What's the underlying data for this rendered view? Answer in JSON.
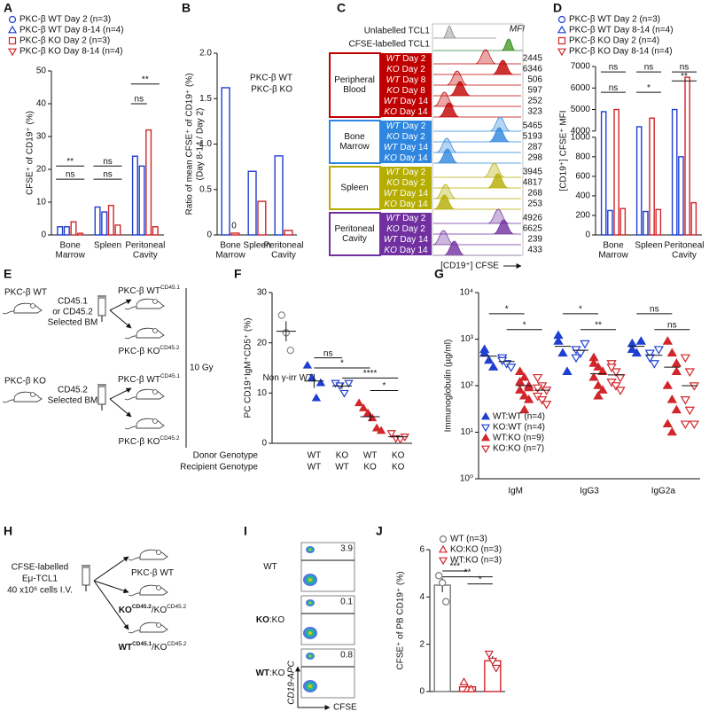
{
  "chart_data": [
    {
      "letter": "A",
      "type": "bar",
      "ylabel": [
        "CFSE⁺ of CD19⁺ (%)"
      ],
      "categories": [
        [
          "Bone",
          "Marrow"
        ],
        [
          "Spleen"
        ],
        [
          "Peritoneal",
          "Cavity"
        ]
      ],
      "ylim": [
        0,
        50
      ],
      "yticks": [
        0,
        10,
        20,
        30,
        40,
        50
      ],
      "series": [
        {
          "name": "PKC-β WT Day 2 (n=3)",
          "color": "#1f3fd1",
          "marker": "circle",
          "filled": false,
          "values": [
            2.5,
            8.5,
            24
          ]
        },
        {
          "name": "PKC-β WT Day 8-14 (n=4)",
          "color": "#1f3fd1",
          "marker": "triangle-up",
          "filled": false,
          "values": [
            2.5,
            7,
            21
          ]
        },
        {
          "name": "PKC-β KO Day 2 (n=3)",
          "color": "#d1262b",
          "marker": "square",
          "filled": false,
          "values": [
            4,
            9,
            32
          ]
        },
        {
          "name": "PKC-β KO Day 8-14 (n=4)",
          "color": "#d1262b",
          "marker": "triangle-down",
          "filled": false,
          "values": [
            0.5,
            3,
            2.5
          ]
        }
      ],
      "annotations": [
        "**",
        "ns",
        "ns",
        "ns",
        "**",
        "ns"
      ]
    },
    {
      "letter": "B",
      "type": "bar",
      "ylabel": [
        "Ratio of mean CFSE⁺ of CD19⁺ (%)",
        "(Day 8-14 / Day 2)"
      ],
      "categories": [
        [
          "Bone",
          "Marrow"
        ],
        [
          "Spleen"
        ],
        [
          "Peritoneal",
          "Cavity"
        ]
      ],
      "ylim": [
        0,
        2
      ],
      "yticks": [
        0,
        0.5,
        {
          "value": 1,
          "label": "1.0"
        },
        1.5,
        {
          "value": 2,
          "label": "2.0"
        }
      ],
      "series": [
        {
          "name": "PKC-β WT",
          "color": "#1f3fd1",
          "values": [
            1.62,
            0.7,
            0.87
          ]
        },
        {
          "name": "PKC-β KO",
          "color": "#d1262b",
          "values": [
            0.02,
            0.37,
            0.05
          ]
        }
      ],
      "annotations": [
        "0"
      ]
    },
    {
      "letter": "D",
      "type": "bar",
      "ylabel": [
        "[CD19⁺] CFSE⁺ MFI"
      ],
      "categories": [
        [
          "Bone",
          "Marrow"
        ],
        [
          "Spleen"
        ],
        [
          "Peritoneal",
          "Cavity"
        ]
      ],
      "ylim": [
        0,
        7000
      ],
      "y_break": [
        1000,
        4000
      ],
      "yticks": [
        0,
        200,
        400,
        600,
        800,
        1000,
        4000,
        5000,
        6000,
        7000
      ],
      "series": [
        {
          "name": "PKC-β WT Day 2 (n=3)",
          "color": "#1f3fd1",
          "marker": "circle",
          "filled": false,
          "values": [
            4900,
            4200,
            5000
          ]
        },
        {
          "name": "PKC-β WT Day 8-14 (n=4)",
          "color": "#1f3fd1",
          "marker": "triangle-up",
          "filled": false,
          "values": [
            250,
            240,
            800
          ]
        },
        {
          "name": "PKC-β KO Day 2 (n=4)",
          "color": "#d1262b",
          "marker": "square",
          "filled": false,
          "values": [
            5000,
            4600,
            6500
          ]
        },
        {
          "name": "PKC-β KO Day 8-14 (n=4)",
          "color": "#d1262b",
          "marker": "triangle-down",
          "filled": false,
          "values": [
            270,
            260,
            330
          ]
        }
      ],
      "annotations": [
        "ns",
        "ns",
        "ns",
        "*",
        "ns",
        "**"
      ]
    },
    {
      "letter": "F",
      "type": "scatter",
      "ylabel": [
        "PC CD19⁺IgM⁺CD5⁺ (%)"
      ],
      "ylim": [
        0,
        30
      ],
      "yticks": [
        0,
        10,
        20,
        30
      ],
      "row_labels": [
        "Donor Genotype",
        "Recipient Genotype"
      ],
      "reference": {
        "name": "Non γ-irr WT",
        "color": "#888888",
        "values": [
          25.5,
          22,
          18.5
        ],
        "mean": 22.3,
        "sem": 2
      },
      "groups": [
        {
          "categories": [
            "WT",
            "WT"
          ],
          "color": "#1f3fd1",
          "marker": "triangle-up",
          "filled": true,
          "values": [
            15.5,
            13,
            9,
            12
          ],
          "mean": 12.4,
          "sem": 1.4
        },
        {
          "categories": [
            "KO",
            "WT"
          ],
          "color": "#1f3fd1",
          "marker": "triangle-down",
          "filled": false,
          "values": [
            12,
            11.5,
            10,
            12
          ],
          "mean": 11.4,
          "sem": 0.5
        },
        {
          "categories": [
            "WT",
            "KO"
          ],
          "color": "#d1262b",
          "marker": "triangle-up",
          "filled": true,
          "values": [
            8,
            7,
            6,
            5,
            3,
            2.5
          ],
          "mean": 5.3,
          "sem": 0.9
        },
        {
          "categories": [
            "KO",
            "KO"
          ],
          "color": "#d1262b",
          "marker": "triangle-down",
          "filled": false,
          "values": [
            2,
            1,
            0.8,
            1.3
          ],
          "mean": 1.3,
          "sem": 0.3
        }
      ],
      "annotations": [
        "ns",
        "*",
        "****",
        "*"
      ]
    },
    {
      "letter": "G",
      "type": "scatter",
      "log": true,
      "ylabel": [
        "Immunoglobulin (µg/ml)"
      ],
      "categories": [
        "IgM",
        "IgG3",
        "IgG2a"
      ],
      "ylim": [
        1,
        10000
      ],
      "yticks": [
        {
          "value": 1,
          "label": "10⁰"
        },
        {
          "value": 10,
          "label": "10¹"
        },
        {
          "value": 100,
          "label": "10²"
        },
        {
          "value": 1000,
          "label": "10³"
        },
        {
          "value": 10000,
          "label": "10⁴"
        }
      ],
      "series": [
        {
          "name": "WT:WT (n=4)",
          "color": "#1f3fd1",
          "marker": "triangle-up",
          "filled": true,
          "values": [
            [
              500,
              350,
              250,
              600
            ],
            [
              900,
              500,
              200,
              1200
            ],
            [
              800,
              500,
              900,
              600
            ]
          ],
          "means": [
            430,
            700,
            700
          ]
        },
        {
          "name": "KO:WT (n=4)",
          "color": "#1f3fd1",
          "marker": "triangle-down",
          "filled": false,
          "values": [
            [
              400,
              300,
              250,
              350
            ],
            [
              600,
              500,
              800,
              400
            ],
            [
              500,
              300,
              600,
              400
            ]
          ],
          "means": [
            330,
            575,
            450
          ]
        },
        {
          "name": "WT:KO (n=9)",
          "color": "#d1262b",
          "marker": "triangle-up",
          "filled": true,
          "values": [
            [
              200,
              150,
              100,
              80,
              60,
              50,
              120,
              30,
              90
            ],
            [
              400,
              250,
              200,
              150,
              100,
              80,
              300,
              60,
              200
            ],
            [
              900,
              500,
              200,
              100,
              50,
              30,
              15,
              10,
              300
            ]
          ],
          "means": [
            100,
            180,
            250
          ]
        },
        {
          "name": "KO:KO (n=7)",
          "color": "#d1262b",
          "marker": "triangle-down",
          "filled": false,
          "values": [
            [
              150,
              100,
              80,
              60,
              50,
              40,
              90
            ],
            [
              300,
              200,
              150,
              120,
              100,
              80,
              250
            ],
            [
              400,
              200,
              100,
              50,
              30,
              15,
              15
            ]
          ],
          "means": [
            80,
            170,
            100
          ]
        }
      ],
      "annotations": [
        "*",
        "*",
        "*",
        "**",
        "ns",
        "ns"
      ]
    },
    {
      "letter": "J",
      "type": "bar",
      "ylabel": [
        "CFSE⁺ of PB CD19⁺ (%)"
      ],
      "ylim": [
        0,
        6
      ],
      "yticks": [
        0,
        2,
        4,
        6
      ],
      "series": [
        {
          "name": "WT (n=3)",
          "color": "#777777",
          "marker": "circle",
          "filled": false,
          "value": 4.5,
          "points": [
            4.9,
            4.6,
            3.8
          ],
          "sem": 0.3
        },
        {
          "name": "KO:KO (n=3)",
          "color": "#d1262b",
          "marker": "triangle-up",
          "filled": false,
          "value": 0.2,
          "points": [
            0.4,
            0.1,
            0.1
          ],
          "sem": 0.1
        },
        {
          "name": "WT:KO (n=3)",
          "color": "#d1262b",
          "marker": "triangle-down",
          "filled": false,
          "value": 1.3,
          "points": [
            1.6,
            1.3,
            1.0
          ],
          "sem": 0.2
        }
      ],
      "annotations": [
        "***",
        "**",
        "*"
      ]
    }
  ],
  "panel_c": {
    "letter": "C",
    "top_labels": [
      "Unlabelled TCL1",
      "CFSE-labelled TCL1"
    ],
    "mfi_label": "MFI",
    "xlabel": "[CD19⁺] CFSE",
    "groups": [
      {
        "name": [
          "Peripheral",
          "Blood"
        ],
        "color": "#c00000",
        "rows": [
          {
            "genotype": "WT",
            "day": "Day 2",
            "mfi": 2445
          },
          {
            "genotype": "KO",
            "day": "Day 2",
            "mfi": 6346
          },
          {
            "genotype": "WT",
            "day": "Day 8",
            "mfi": 506
          },
          {
            "genotype": "KO",
            "day": "Day 8",
            "mfi": 597
          },
          {
            "genotype": "WT",
            "day": "Day 14",
            "mfi": 252
          },
          {
            "genotype": "KO",
            "day": "Day 14",
            "mfi": 323
          }
        ]
      },
      {
        "name": [
          "Bone",
          "Marrow"
        ],
        "color": "#2e86de",
        "rows": [
          {
            "genotype": "WT",
            "day": "Day 2",
            "mfi": 5465
          },
          {
            "genotype": "KO",
            "day": "Day 2",
            "mfi": 5193
          },
          {
            "genotype": "WT",
            "day": "Day 14",
            "mfi": 287
          },
          {
            "genotype": "KO",
            "day": "Day 14",
            "mfi": 298
          }
        ]
      },
      {
        "name": [
          "Spleen"
        ],
        "color": "#b5ad00",
        "rows": [
          {
            "genotype": "WT",
            "day": "Day 2",
            "mfi": 3945
          },
          {
            "genotype": "KO",
            "day": "Day 2",
            "mfi": 4817
          },
          {
            "genotype": "WT",
            "day": "Day 14",
            "mfi": 268
          },
          {
            "genotype": "KO",
            "day": "Day 14",
            "mfi": 253
          }
        ]
      },
      {
        "name": [
          "Peritoneal",
          "Cavity"
        ],
        "color": "#7030a0",
        "rows": [
          {
            "genotype": "WT",
            "day": "Day 2",
            "mfi": 4926
          },
          {
            "genotype": "KO",
            "day": "Day 2",
            "mfi": 6625
          },
          {
            "genotype": "WT",
            "day": "Day 14",
            "mfi": 239
          },
          {
            "genotype": "KO",
            "day": "Day 14",
            "mfi": 433
          }
        ]
      }
    ]
  },
  "panel_e": {
    "letter": "E",
    "donors": [
      {
        "label": "PKC-β WT",
        "selection": [
          "CD45.1",
          "or CD45.2",
          "Selected BM"
        ]
      },
      {
        "label": "PKC-β KO",
        "selection": [
          "CD45.2",
          "Selected BM"
        ]
      }
    ],
    "recipients": [
      [
        {
          "text": "PKC-β WT"
        },
        {
          "text": "CD45.1",
          "sup": true
        }
      ],
      [
        {
          "text": "PKC-β KO"
        },
        {
          "text": "CD45.2",
          "sup": true
        }
      ],
      [
        {
          "text": "PKC-β WT"
        },
        {
          "text": "CD45.1",
          "sup": true
        }
      ],
      [
        {
          "text": "PKC-β KO"
        },
        {
          "text": "CD45.2",
          "sup": true
        }
      ]
    ],
    "irradiation": "10 Gy"
  },
  "panel_h": {
    "letter": "H",
    "donor": [
      "CFSE-labelled",
      "Eμ-TCL1",
      "40 x10⁶ cells I.V."
    ],
    "recipients": [
      [
        {
          "text": "PKC-β WT"
        }
      ],
      [
        {
          "text": "KO",
          "bold": true
        },
        {
          "text": "CD45.2",
          "sup": true,
          "bold": true
        },
        {
          "text": "/KO"
        },
        {
          "text": "CD45.2",
          "sup": true
        }
      ],
      [
        {
          "text": "WT",
          "bold": true
        },
        {
          "text": "CD45.1",
          "sup": true,
          "bold": true
        },
        {
          "text": "/KO"
        },
        {
          "text": "CD45.2",
          "sup": true
        }
      ]
    ]
  },
  "panel_i": {
    "letter": "I",
    "ylabel": "CD19-APC",
    "xlabel": "CFSE",
    "rows": [
      {
        "label": [
          {
            "text": "WT"
          }
        ],
        "percent": 3.9
      },
      {
        "label": [
          {
            "text": "KO",
            "bold": true
          },
          {
            "text": ":KO"
          }
        ],
        "percent": 0.1
      },
      {
        "label": [
          {
            "text": "WT",
            "bold": true
          },
          {
            "text": ":KO"
          }
        ],
        "percent": 0.8
      }
    ]
  }
}
